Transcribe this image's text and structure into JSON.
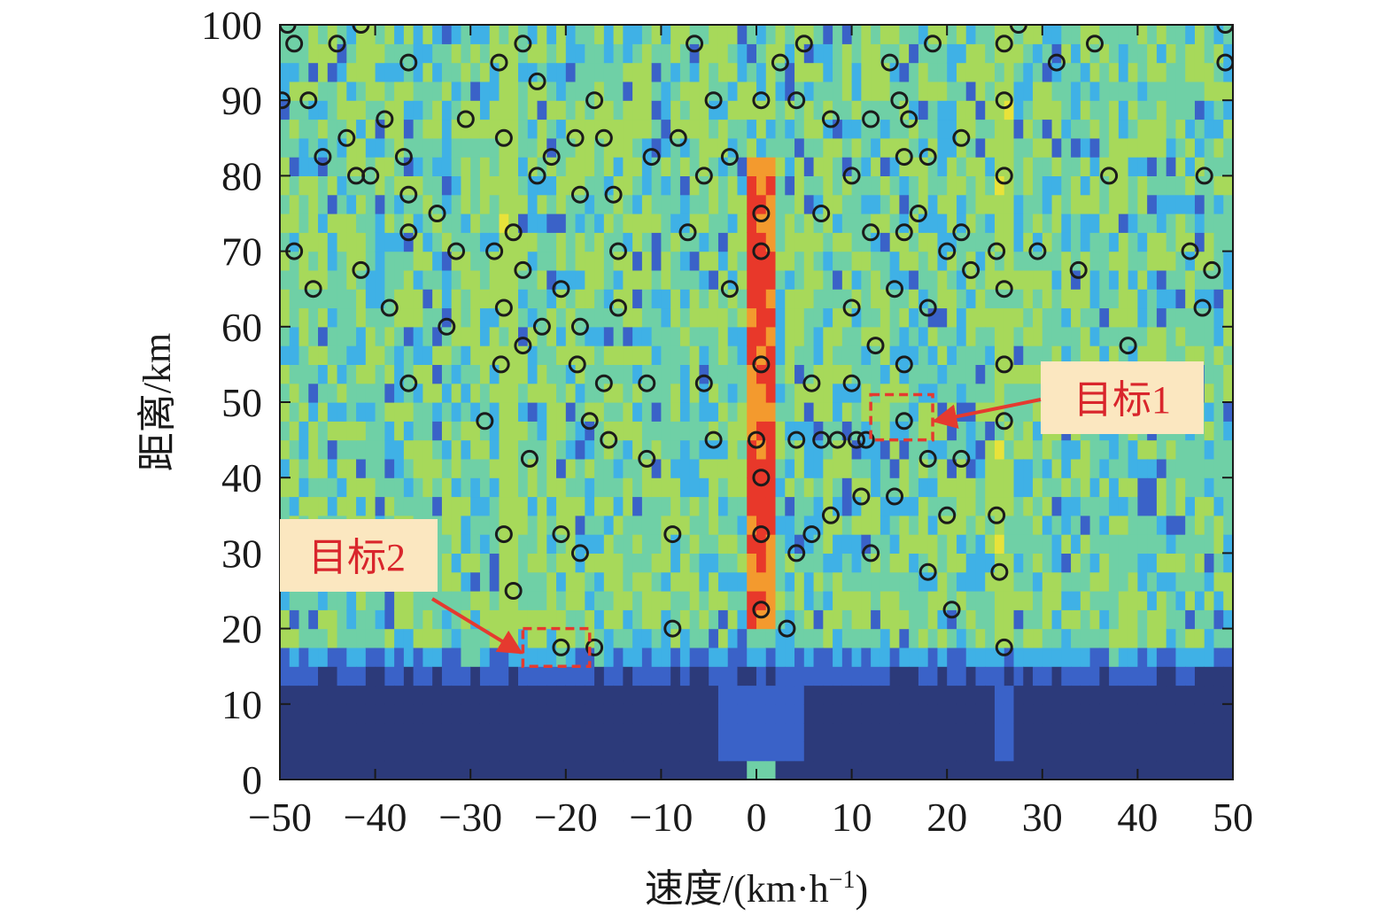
{
  "chart_data": {
    "type": "heatmap",
    "title": "",
    "xlabel": "速度/(km·h",
    "xlabel_sup": "−1",
    "xlabel_close": ")",
    "ylabel": "距离/km",
    "xlim": [
      -50,
      50
    ],
    "ylim": [
      0,
      100
    ],
    "x_ticks": [
      -50,
      -40,
      -30,
      -20,
      -10,
      0,
      10,
      20,
      30,
      40,
      50
    ],
    "y_ticks": [
      0,
      10,
      20,
      30,
      40,
      50,
      60,
      70,
      80,
      90,
      100
    ],
    "x_tick_labels": [
      "−50",
      "−40",
      "−30",
      "−20",
      "−10",
      "0",
      "10",
      "20",
      "30",
      "40",
      "50"
    ],
    "y_tick_labels": [
      "0",
      "10",
      "20",
      "30",
      "40",
      "50",
      "60",
      "70",
      "80",
      "90",
      "100"
    ],
    "colormap": [
      "#2c3a7a",
      "#3a62c8",
      "#3fb1e6",
      "#6fd0a6",
      "#a7d95a",
      "#e8e23a",
      "#f39a2e",
      "#e8382a"
    ],
    "bright_stripes": [
      {
        "velocity": 0.5,
        "range": [
          19,
          82
        ],
        "intensity": 0.95
      },
      {
        "velocity": 26,
        "range": [
          15,
          100
        ],
        "intensity": 0.6
      },
      {
        "velocity": -26,
        "range": [
          18,
          100
        ],
        "intensity": 0.6
      }
    ],
    "low_region": {
      "range": [
        2,
        12
      ]
    },
    "detections": [
      [
        -49.2,
        100
      ],
      [
        -41.5,
        100
      ],
      [
        27.5,
        100
      ],
      [
        49.2,
        100
      ],
      [
        -48.5,
        97.5
      ],
      [
        -44,
        97.5
      ],
      [
        -24.5,
        97.5
      ],
      [
        -6.5,
        97.5
      ],
      [
        5,
        97.5
      ],
      [
        18.5,
        97.5
      ],
      [
        26,
        97.5
      ],
      [
        35.5,
        97.5
      ],
      [
        -36.5,
        95
      ],
      [
        -27,
        95
      ],
      [
        2.5,
        95
      ],
      [
        14,
        95
      ],
      [
        31.5,
        95
      ],
      [
        49.2,
        95
      ],
      [
        -23,
        92.5
      ],
      [
        -49.8,
        90
      ],
      [
        -47,
        90
      ],
      [
        -17,
        90
      ],
      [
        -4.5,
        90
      ],
      [
        0.5,
        90
      ],
      [
        4.2,
        90
      ],
      [
        15,
        90
      ],
      [
        26,
        90
      ],
      [
        -39,
        87.5
      ],
      [
        -30.5,
        87.5
      ],
      [
        7.8,
        87.5
      ],
      [
        12,
        87.5
      ],
      [
        16,
        87.5
      ],
      [
        -43,
        85
      ],
      [
        -26.5,
        85
      ],
      [
        -19,
        85
      ],
      [
        -16,
        85
      ],
      [
        -8.2,
        85
      ],
      [
        21.5,
        85
      ],
      [
        -45.5,
        82.5
      ],
      [
        -37,
        82.5
      ],
      [
        -21.5,
        82.5
      ],
      [
        -11,
        82.5
      ],
      [
        -2.8,
        82.5
      ],
      [
        15.5,
        82.5
      ],
      [
        18,
        82.5
      ],
      [
        -42,
        80
      ],
      [
        -40.5,
        80
      ],
      [
        -23,
        80
      ],
      [
        -5.5,
        80
      ],
      [
        10,
        80
      ],
      [
        26,
        80
      ],
      [
        37,
        80
      ],
      [
        47,
        80
      ],
      [
        -36.5,
        77.5
      ],
      [
        -18.5,
        77.5
      ],
      [
        -15,
        77.5
      ],
      [
        -33.5,
        75
      ],
      [
        0.5,
        75
      ],
      [
        6.8,
        75
      ],
      [
        17,
        75
      ],
      [
        -36.5,
        72.5
      ],
      [
        -25.5,
        72.5
      ],
      [
        -7.2,
        72.5
      ],
      [
        12,
        72.5
      ],
      [
        15.5,
        72.5
      ],
      [
        21.5,
        72.5
      ],
      [
        -48.5,
        70
      ],
      [
        -31.5,
        70
      ],
      [
        -27.5,
        70
      ],
      [
        -14.5,
        70
      ],
      [
        0.5,
        70
      ],
      [
        20,
        70
      ],
      [
        25.2,
        70
      ],
      [
        29.5,
        70
      ],
      [
        45.5,
        70
      ],
      [
        -41.5,
        67.5
      ],
      [
        -24.5,
        67.5
      ],
      [
        22.5,
        67.5
      ],
      [
        33.8,
        67.5
      ],
      [
        47.8,
        67.5
      ],
      [
        -46.5,
        65
      ],
      [
        -20.5,
        65
      ],
      [
        -2.8,
        65
      ],
      [
        14.5,
        65
      ],
      [
        26,
        65
      ],
      [
        -38.5,
        62.5
      ],
      [
        -26.5,
        62.5
      ],
      [
        -14.5,
        62.5
      ],
      [
        10,
        62.5
      ],
      [
        18,
        62.5
      ],
      [
        46.8,
        62.5
      ],
      [
        -32.5,
        60
      ],
      [
        -22.5,
        60
      ],
      [
        -18.5,
        60
      ],
      [
        -24.5,
        57.5
      ],
      [
        12.5,
        57.5
      ],
      [
        39,
        57.5
      ],
      [
        -26.8,
        55
      ],
      [
        -18.8,
        55
      ],
      [
        0.5,
        55
      ],
      [
        15.5,
        55
      ],
      [
        26,
        55
      ],
      [
        -36.5,
        52.5
      ],
      [
        -16,
        52.5
      ],
      [
        -11.5,
        52.5
      ],
      [
        -5.5,
        52.5
      ],
      [
        5.8,
        52.5
      ],
      [
        10,
        52.5
      ],
      [
        -28.5,
        47.5
      ],
      [
        -17.5,
        47.5
      ],
      [
        15.5,
        47.5
      ],
      [
        26,
        47.5
      ],
      [
        -15.5,
        45
      ],
      [
        -4.5,
        45
      ],
      [
        0,
        45
      ],
      [
        4.2,
        45
      ],
      [
        6.8,
        45
      ],
      [
        8.5,
        45
      ],
      [
        10.5,
        45
      ],
      [
        11.5,
        45
      ],
      [
        -23.8,
        42.5
      ],
      [
        -11.5,
        42.5
      ],
      [
        18,
        42.5
      ],
      [
        21.5,
        42.5
      ],
      [
        0.5,
        40
      ],
      [
        11,
        37.5
      ],
      [
        14.5,
        37.5
      ],
      [
        7.8,
        35
      ],
      [
        20,
        35
      ],
      [
        25.2,
        35
      ],
      [
        -26.5,
        32.5
      ],
      [
        -20.5,
        32.5
      ],
      [
        -8.8,
        32.5
      ],
      [
        0.5,
        32.5
      ],
      [
        5.8,
        32.5
      ],
      [
        -18.5,
        30
      ],
      [
        4.2,
        30
      ],
      [
        12,
        30
      ],
      [
        18,
        27.5
      ],
      [
        25.5,
        27.5
      ],
      [
        -25.5,
        25
      ],
      [
        0.5,
        22.5
      ],
      [
        20.5,
        22.5
      ],
      [
        -8.8,
        20
      ],
      [
        3.2,
        20
      ],
      [
        -20.5,
        17.5
      ],
      [
        -17,
        17.5
      ],
      [
        26,
        17.5
      ]
    ],
    "annotations": [
      {
        "label": "目标1",
        "target": [
          15.5,
          47.5
        ],
        "box_x": [
          12,
          18.5
        ],
        "box_y": [
          45,
          51
        ]
      },
      {
        "label": "目标2",
        "target": [
          -20.5,
          17.5
        ],
        "box_x": [
          -24.5,
          -17.5
        ],
        "box_y": [
          15,
          20
        ]
      }
    ]
  }
}
